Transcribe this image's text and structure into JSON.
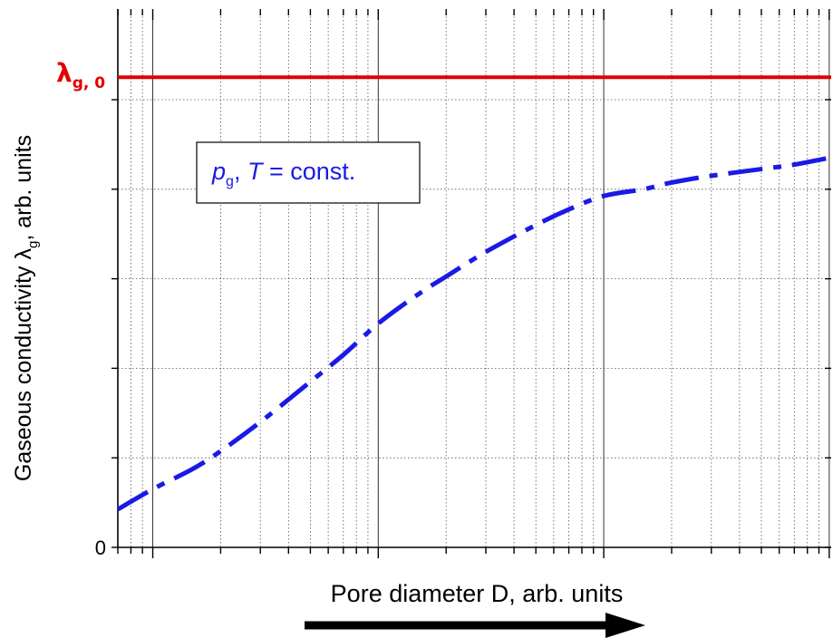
{
  "chart_data": {
    "type": "line",
    "xlabel": "Pore diameter D, arb. units",
    "ylabel": {
      "prefix": "Gaseous conductivity ",
      "symbol": "λ",
      "subscript": "g",
      "suffix": ", arb. units"
    },
    "x_scale": "log",
    "xlim": [
      0.7,
      1020
    ],
    "ylim": [
      0,
      1.0
    ],
    "x_major_ticks": [
      1,
      10,
      100,
      1000
    ],
    "y_ticks": [
      0,
      0.2,
      0.4,
      0.6,
      0.8,
      1.0
    ],
    "y_tick_labels": [
      {
        "value": 0,
        "label": "0"
      }
    ],
    "grid": true,
    "reference_line": {
      "y": 1.05,
      "label_symbol": "λ",
      "label_subscript": "g, 0",
      "color": "#e00000"
    },
    "series": [
      {
        "x": [
          0.7,
          1,
          1.5,
          2,
          3,
          5,
          7,
          10,
          15,
          20,
          30,
          50,
          70,
          100,
          150,
          200,
          300,
          500,
          700,
          1000
        ],
        "y": [
          0.085,
          0.13,
          0.175,
          0.215,
          0.28,
          0.37,
          0.43,
          0.5,
          0.565,
          0.605,
          0.66,
          0.72,
          0.755,
          0.785,
          0.8,
          0.815,
          0.83,
          0.845,
          0.855,
          0.87
        ],
        "color": "#1a1ae6",
        "style": "dash-dot"
      }
    ],
    "annotation": {
      "p": "p",
      "p_sub": "g",
      "comma": ", ",
      "t": "T",
      "rest": " = const."
    }
  },
  "arrow": {
    "direction": "right",
    "color": "#000000"
  }
}
